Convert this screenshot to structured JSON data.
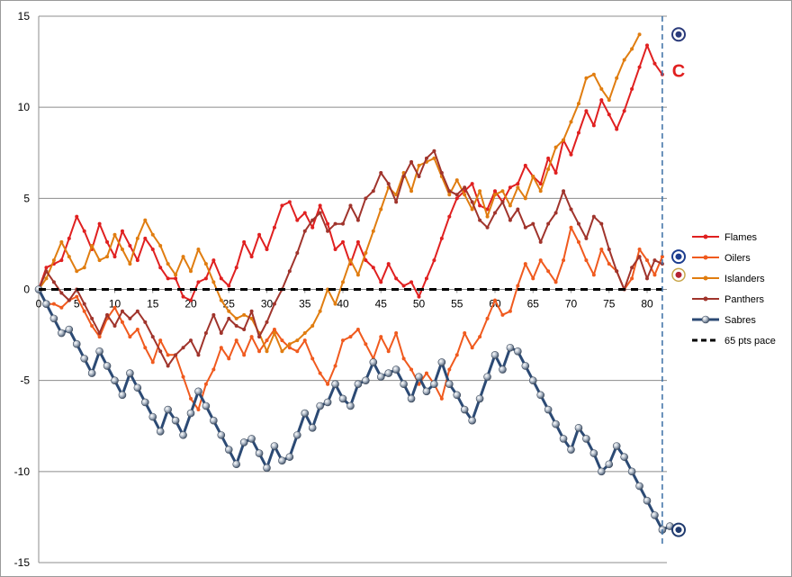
{
  "chart_data": {
    "type": "line",
    "title": "",
    "xlabel": "",
    "ylabel": "",
    "xlim": [
      0,
      83
    ],
    "ylim": [
      -15,
      15
    ],
    "y_ticks": [
      -15,
      -10,
      -5,
      0,
      5,
      10,
      15
    ],
    "x_ticks": [
      0,
      5,
      10,
      15,
      20,
      25,
      30,
      35,
      40,
      45,
      50,
      55,
      60,
      65,
      70,
      75,
      80
    ],
    "grid": "horizontal",
    "legend_position": "right",
    "end_marker_x": 82,
    "series": [
      {
        "name": "Flames",
        "color": "#e02020",
        "marker": "dot",
        "width": 2,
        "values": [
          0,
          1.2,
          1.4,
          1.6,
          2.8,
          4,
          3.2,
          2.2,
          3.6,
          2.6,
          1.8,
          3.2,
          2.4,
          1.6,
          2.8,
          2.2,
          1.2,
          0.6,
          0.6,
          -0.4,
          -0.6,
          0.4,
          0.6,
          1.6,
          0.6,
          0.2,
          1.2,
          2.6,
          1.8,
          3,
          2.2,
          3.4,
          4.6,
          4.8,
          3.8,
          4.2,
          3.4,
          4.6,
          3.6,
          2.2,
          2.6,
          1.4,
          2.6,
          1.6,
          1.2,
          0.4,
          1.4,
          0.6,
          0.2,
          0.4,
          -0.4,
          0.6,
          1.6,
          2.8,
          4,
          5,
          5.4,
          5.8,
          4.6,
          4.4,
          5.4,
          4.8,
          5.6,
          5.8,
          6.8,
          6.2,
          5.8,
          7.2,
          6.4,
          8.2,
          7.4,
          8.6,
          9.8,
          9,
          10.4,
          9.6,
          8.8,
          9.8,
          11,
          12.2,
          13.4,
          12.4,
          11.8
        ]
      },
      {
        "name": "Oilers",
        "color": "#f05a1e",
        "marker": "dot",
        "width": 2,
        "values": [
          0,
          -0.8,
          -0.8,
          -1,
          -0.6,
          -0.4,
          -1.2,
          -2,
          -2.6,
          -1.6,
          -1,
          -1.8,
          -2.6,
          -2.2,
          -3.2,
          -4,
          -2.8,
          -3.6,
          -3.6,
          -4.8,
          -6,
          -6.6,
          -5.2,
          -4.4,
          -3.2,
          -3.8,
          -2.8,
          -3.6,
          -2.6,
          -3.4,
          -2.8,
          -2.2,
          -2.8,
          -3.2,
          -3.4,
          -2.8,
          -3.8,
          -4.6,
          -5.2,
          -4.2,
          -2.8,
          -2.6,
          -2.2,
          -3,
          -3.8,
          -2.6,
          -3.4,
          -2.4,
          -3.8,
          -4.4,
          -5.2,
          -4.6,
          -5.2,
          -6,
          -4.4,
          -3.6,
          -2.4,
          -3.2,
          -2.6,
          -1.6,
          -0.6,
          -1.4,
          -1.2,
          0.2,
          1.4,
          0.6,
          1.6,
          1,
          0.4,
          1.6,
          3.4,
          2.6,
          1.6,
          0.8,
          2.2,
          1.4,
          1,
          0,
          0.6,
          2.2,
          1.6,
          0.8,
          1.8
        ]
      },
      {
        "name": "Islanders",
        "color": "#e07d10",
        "marker": "dot",
        "width": 2,
        "values": [
          0,
          0.6,
          1.6,
          2.6,
          1.8,
          1,
          1.2,
          2.4,
          1.6,
          1.8,
          3,
          2.2,
          1.4,
          2.8,
          3.8,
          3,
          2.4,
          1.4,
          0.8,
          1.8,
          1,
          2.2,
          1.4,
          0.4,
          -0.6,
          -1.2,
          -1.6,
          -1.4,
          -1.6,
          -2.4,
          -3.4,
          -2.4,
          -3.4,
          -3,
          -2.8,
          -2.4,
          -2,
          -1.2,
          0,
          -0.8,
          0.4,
          1.6,
          0.8,
          2,
          3.2,
          4.4,
          5.6,
          5.2,
          6.4,
          5.4,
          6.8,
          7,
          7.2,
          6.2,
          5.2,
          6,
          5.2,
          4.4,
          5.4,
          4,
          5.2,
          5.4,
          4.6,
          5.6,
          5,
          6.2,
          5.4,
          6.6,
          7.8,
          8.2,
          9.2,
          10.2,
          11.6,
          11.8,
          11,
          10.4,
          11.6,
          12.6,
          13.2,
          14
        ]
      },
      {
        "name": "Panthers",
        "color": "#a0342c",
        "marker": "dot",
        "width": 2,
        "values": [
          0,
          1,
          0.4,
          -0.2,
          -0.6,
          0,
          -0.8,
          -1.6,
          -2.4,
          -1.4,
          -2,
          -1.2,
          -1.6,
          -1.2,
          -1.8,
          -2.6,
          -3.4,
          -4.2,
          -3.6,
          -3.2,
          -2.8,
          -3.6,
          -2.4,
          -1.4,
          -2.4,
          -1.6,
          -2,
          -2.2,
          -1.2,
          -2.6,
          -1.8,
          -0.8,
          0,
          1,
          2,
          3.2,
          3.8,
          4.2,
          3.2,
          3.6,
          3.6,
          4.6,
          3.8,
          5,
          5.4,
          6.4,
          5.8,
          4.8,
          6.2,
          7,
          6.2,
          7.2,
          7.6,
          6.4,
          5.4,
          5.2,
          5.6,
          4.8,
          3.8,
          3.4,
          4.2,
          4.8,
          3.8,
          4.4,
          3.4,
          3.6,
          2.6,
          3.6,
          4.2,
          5.4,
          4.4,
          3.6,
          2.8,
          4,
          3.6,
          2.2,
          1,
          0,
          1.2,
          1.8,
          0.6,
          1.6,
          1.4
        ]
      },
      {
        "name": "Sabres",
        "color": "#2c4a74",
        "marker": "bead",
        "width": 3,
        "values": [
          0,
          -0.8,
          -1.6,
          -2.4,
          -2.2,
          -3,
          -3.8,
          -4.6,
          -3.4,
          -4.2,
          -5,
          -5.8,
          -4.6,
          -5.4,
          -6.2,
          -7,
          -7.8,
          -6.6,
          -7.2,
          -8,
          -6.8,
          -5.6,
          -6.4,
          -7.2,
          -8,
          -8.8,
          -9.6,
          -8.4,
          -8.2,
          -9,
          -9.8,
          -8.6,
          -9.4,
          -9.2,
          -8,
          -6.8,
          -7.6,
          -6.4,
          -6.2,
          -5.2,
          -6,
          -6.4,
          -5.2,
          -5,
          -4,
          -4.8,
          -4.6,
          -4.4,
          -5.2,
          -6,
          -4.8,
          -5.6,
          -5.2,
          -4,
          -5.2,
          -5.8,
          -6.6,
          -7.2,
          -6,
          -4.8,
          -3.6,
          -4.4,
          -3.2,
          -3.4,
          -4.2,
          -5,
          -5.8,
          -6.6,
          -7.4,
          -8.2,
          -8.8,
          -7.6,
          -8.2,
          -9,
          -10,
          -9.6,
          -8.6,
          -9.2,
          -10,
          -10.8,
          -11.6,
          -12.4,
          -13.2,
          -13
        ]
      },
      {
        "name": "65 pts pace",
        "color": "#000000",
        "marker": "none",
        "width": 3,
        "dash": "8 6",
        "values": [
          0,
          0,
          0,
          0,
          0,
          0,
          0,
          0,
          0,
          0,
          0,
          0,
          0,
          0,
          0,
          0,
          0,
          0,
          0,
          0,
          0,
          0,
          0,
          0,
          0,
          0,
          0,
          0,
          0,
          0,
          0,
          0,
          0,
          0,
          0,
          0,
          0,
          0,
          0,
          0,
          0,
          0,
          0,
          0,
          0,
          0,
          0,
          0,
          0,
          0,
          0,
          0,
          0,
          0,
          0,
          0,
          0,
          0,
          0,
          0,
          0,
          0,
          0,
          0,
          0,
          0,
          0,
          0,
          0,
          0,
          0,
          0,
          0,
          0,
          0,
          0,
          0,
          0,
          0,
          0,
          0,
          0,
          0
        ]
      }
    ],
    "team_logos": [
      {
        "team": "Islanders",
        "icon": "islanders-logo-icon",
        "value": 14,
        "color": "#2a3a7a"
      },
      {
        "team": "Flames",
        "icon": "flames-logo-icon",
        "value": 12,
        "color": "#e02020"
      },
      {
        "team": "Oilers",
        "icon": "oilers-logo-icon",
        "value": 1.8,
        "color": "#1c3d8f"
      },
      {
        "team": "Panthers",
        "icon": "panthers-logo-icon",
        "value": 0.8,
        "color": "#c8a64a"
      },
      {
        "team": "Sabres",
        "icon": "sabres-logo-icon",
        "value": -13.2,
        "color": "#1f3a6e"
      }
    ]
  }
}
